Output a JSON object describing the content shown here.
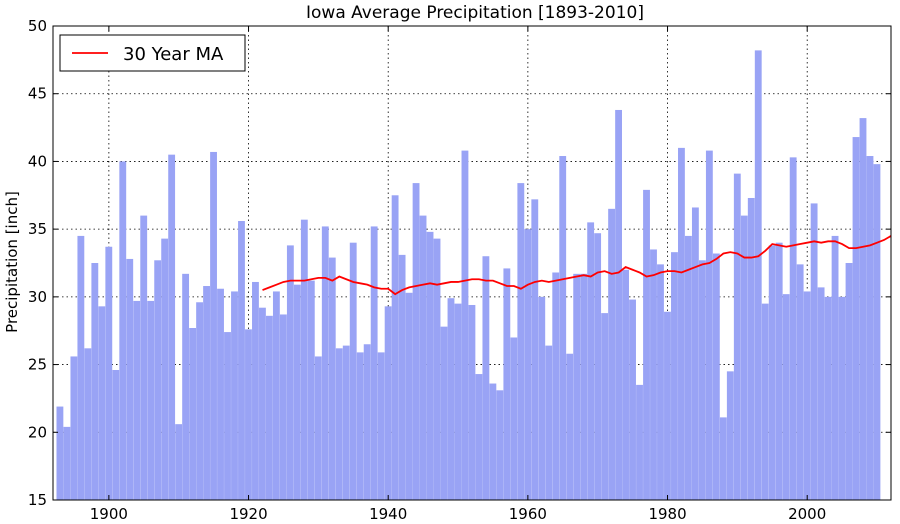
{
  "chart_data": {
    "type": "bar",
    "title": "Iowa Average Precipitation [1893-2010]",
    "xlabel": "",
    "ylabel": "Precipitation [inch]",
    "xlim": [
      1892,
      2012
    ],
    "ylim": [
      15,
      50
    ],
    "x_ticks": [
      1900,
      1920,
      1940,
      1960,
      1980,
      2000
    ],
    "y_ticks": [
      15,
      20,
      25,
      30,
      35,
      40,
      45,
      50
    ],
    "grid": true,
    "legend": {
      "placement": "top-left",
      "entries": [
        {
          "label": "30 Year MA",
          "color": "#ff0000"
        }
      ]
    },
    "colors": {
      "bar": "#99a3f5",
      "moving_average": "#ff0000"
    },
    "series": [
      {
        "type": "bar",
        "start_year": 1893,
        "values": [
          21.9,
          20.4,
          25.6,
          34.5,
          26.2,
          32.5,
          29.3,
          33.7,
          24.6,
          40.0,
          32.8,
          29.7,
          36.0,
          29.7,
          32.7,
          34.3,
          40.5,
          20.6,
          31.7,
          27.7,
          29.6,
          30.8,
          40.7,
          30.6,
          27.4,
          30.4,
          35.6,
          27.6,
          31.1,
          29.2,
          28.6,
          30.4,
          28.7,
          33.8,
          30.9,
          35.7,
          31.2,
          25.6,
          35.2,
          32.9,
          26.2,
          26.4,
          34.0,
          25.9,
          26.5,
          35.2,
          25.9,
          29.3,
          37.5,
          33.1,
          30.3,
          38.4,
          36.0,
          34.8,
          34.3,
          27.8,
          29.9,
          29.5,
          40.8,
          29.4,
          24.3,
          33.0,
          23.6,
          23.1,
          32.1,
          27.0,
          38.4,
          35.0,
          37.2,
          30.0,
          26.4,
          31.8,
          40.4,
          25.8,
          31.7,
          31.7,
          35.5,
          34.7,
          28.8,
          36.5,
          43.8,
          32.0,
          29.8,
          23.5,
          37.9,
          33.5,
          32.4,
          28.9,
          33.3,
          41.0,
          34.5,
          36.6,
          32.7,
          40.8,
          33.2,
          21.1,
          24.5,
          39.1,
          36.0,
          37.3,
          48.2,
          29.5,
          33.8,
          34.0,
          30.2,
          40.3,
          32.4,
          30.4,
          36.9,
          30.7,
          30.0,
          34.5,
          30.0,
          32.5,
          41.8,
          43.2,
          40.4,
          39.8
        ]
      },
      {
        "type": "line",
        "name": "30 Year MA",
        "start_year": 1922,
        "values": [
          30.5,
          30.7,
          30.9,
          31.1,
          31.2,
          31.2,
          31.2,
          31.3,
          31.4,
          31.4,
          31.2,
          31.5,
          31.3,
          31.1,
          31.0,
          30.9,
          30.7,
          30.6,
          30.6,
          30.2,
          30.5,
          30.7,
          30.8,
          30.9,
          31.0,
          30.9,
          31.0,
          31.1,
          31.1,
          31.2,
          31.3,
          31.3,
          31.2,
          31.2,
          31.0,
          30.8,
          30.8,
          30.6,
          30.9,
          31.1,
          31.2,
          31.1,
          31.2,
          31.3,
          31.4,
          31.5,
          31.6,
          31.5,
          31.8,
          31.9,
          31.7,
          31.8,
          32.2,
          32.0,
          31.8,
          31.5,
          31.6,
          31.8,
          31.9,
          31.9,
          31.8,
          32.0,
          32.2,
          32.4,
          32.5,
          32.8,
          33.2,
          33.3,
          33.2,
          32.9,
          32.9,
          33.0,
          33.4,
          33.9,
          33.8,
          33.7,
          33.8,
          33.9,
          34.0,
          34.1,
          34.0,
          34.1,
          34.1,
          33.9,
          33.6,
          33.6,
          33.7,
          33.8,
          34.0,
          34.2,
          34.5
        ]
      }
    ]
  }
}
